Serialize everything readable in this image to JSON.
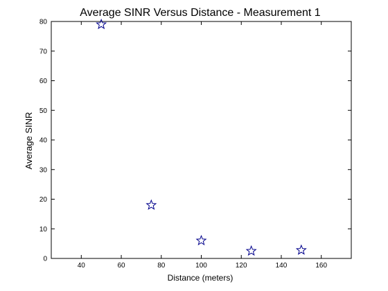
{
  "chart_data": {
    "type": "scatter",
    "title": "Average SINR Versus Distance - Measurement 1",
    "xlabel": "Distance (meters)",
    "ylabel": "Average SINR",
    "xlim": [
      25,
      175
    ],
    "ylim": [
      0,
      80
    ],
    "xticks": [
      40,
      60,
      80,
      100,
      120,
      140,
      160
    ],
    "yticks": [
      0,
      10,
      20,
      30,
      40,
      50,
      60,
      70,
      80
    ],
    "grid": false,
    "marker": "star",
    "marker_color": "#00008b",
    "points": [
      {
        "x": 50,
        "y": 79
      },
      {
        "x": 75,
        "y": 18
      },
      {
        "x": 100,
        "y": 6
      },
      {
        "x": 125,
        "y": 2.5
      },
      {
        "x": 150,
        "y": 2.8
      }
    ]
  }
}
